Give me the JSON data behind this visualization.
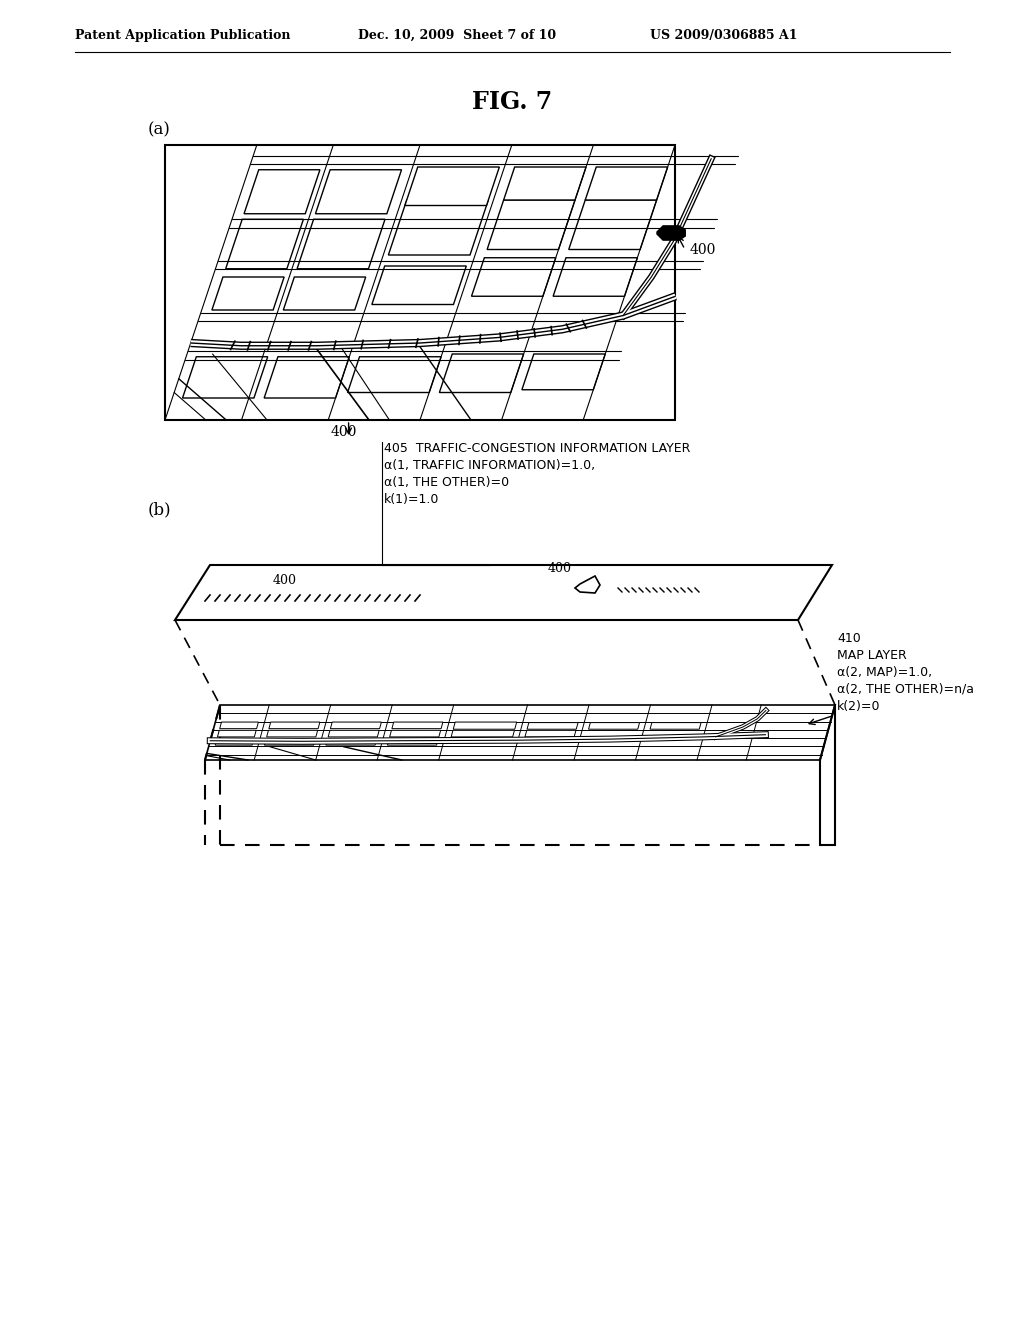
{
  "header_left": "Patent Application Publication",
  "header_mid": "Dec. 10, 2009  Sheet 7 of 10",
  "header_right": "US 2009/0306885 A1",
  "fig_title": "FIG. 7",
  "label_a": "(a)",
  "label_b": "(b)",
  "annotation_405_num": "405",
  "annotation_405_text": "TRAFFIC-CONGESTION INFORMATION LAYER\nα(1, TRAFFIC INFORMATION)=1.0,\nα(1, THE OTHER)=0\nk(1)=1.0",
  "annotation_410_num": "410",
  "annotation_410_text": "MAP LAYER\nα(2, MAP)=1.0,\nα(2, THE OTHER)=n/a\nk(2)=0",
  "label_400": "400",
  "bg_color": "#ffffff",
  "line_color": "#000000"
}
